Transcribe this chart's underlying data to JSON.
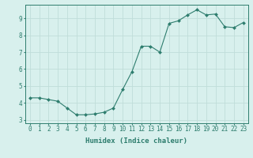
{
  "x": [
    0,
    1,
    2,
    3,
    4,
    5,
    6,
    7,
    8,
    9,
    10,
    11,
    12,
    13,
    14,
    15,
    16,
    17,
    18,
    19,
    20,
    21,
    22,
    23
  ],
  "y": [
    4.3,
    4.3,
    4.2,
    4.1,
    3.7,
    3.3,
    3.3,
    3.35,
    3.45,
    3.7,
    4.8,
    5.85,
    7.35,
    7.35,
    7.0,
    8.7,
    8.85,
    9.2,
    9.5,
    9.2,
    9.25,
    8.5,
    8.45,
    8.75
  ],
  "line_color": "#2e7d6e",
  "marker": "D",
  "marker_size": 2.0,
  "bg_color": "#d8f0ed",
  "grid_color": "#c0ddd9",
  "xlabel": "Humidex (Indice chaleur)",
  "ylim": [
    2.8,
    9.8
  ],
  "xlim": [
    -0.5,
    23.5
  ],
  "yticks": [
    3,
    4,
    5,
    6,
    7,
    8,
    9
  ],
  "xticks": [
    0,
    1,
    2,
    3,
    4,
    5,
    6,
    7,
    8,
    9,
    10,
    11,
    12,
    13,
    14,
    15,
    16,
    17,
    18,
    19,
    20,
    21,
    22,
    23
  ],
  "xlabel_fontsize": 6.5,
  "tick_fontsize": 5.5,
  "tick_color": "#2e7d6e",
  "axis_color": "#2e7d6e",
  "linewidth": 0.8
}
